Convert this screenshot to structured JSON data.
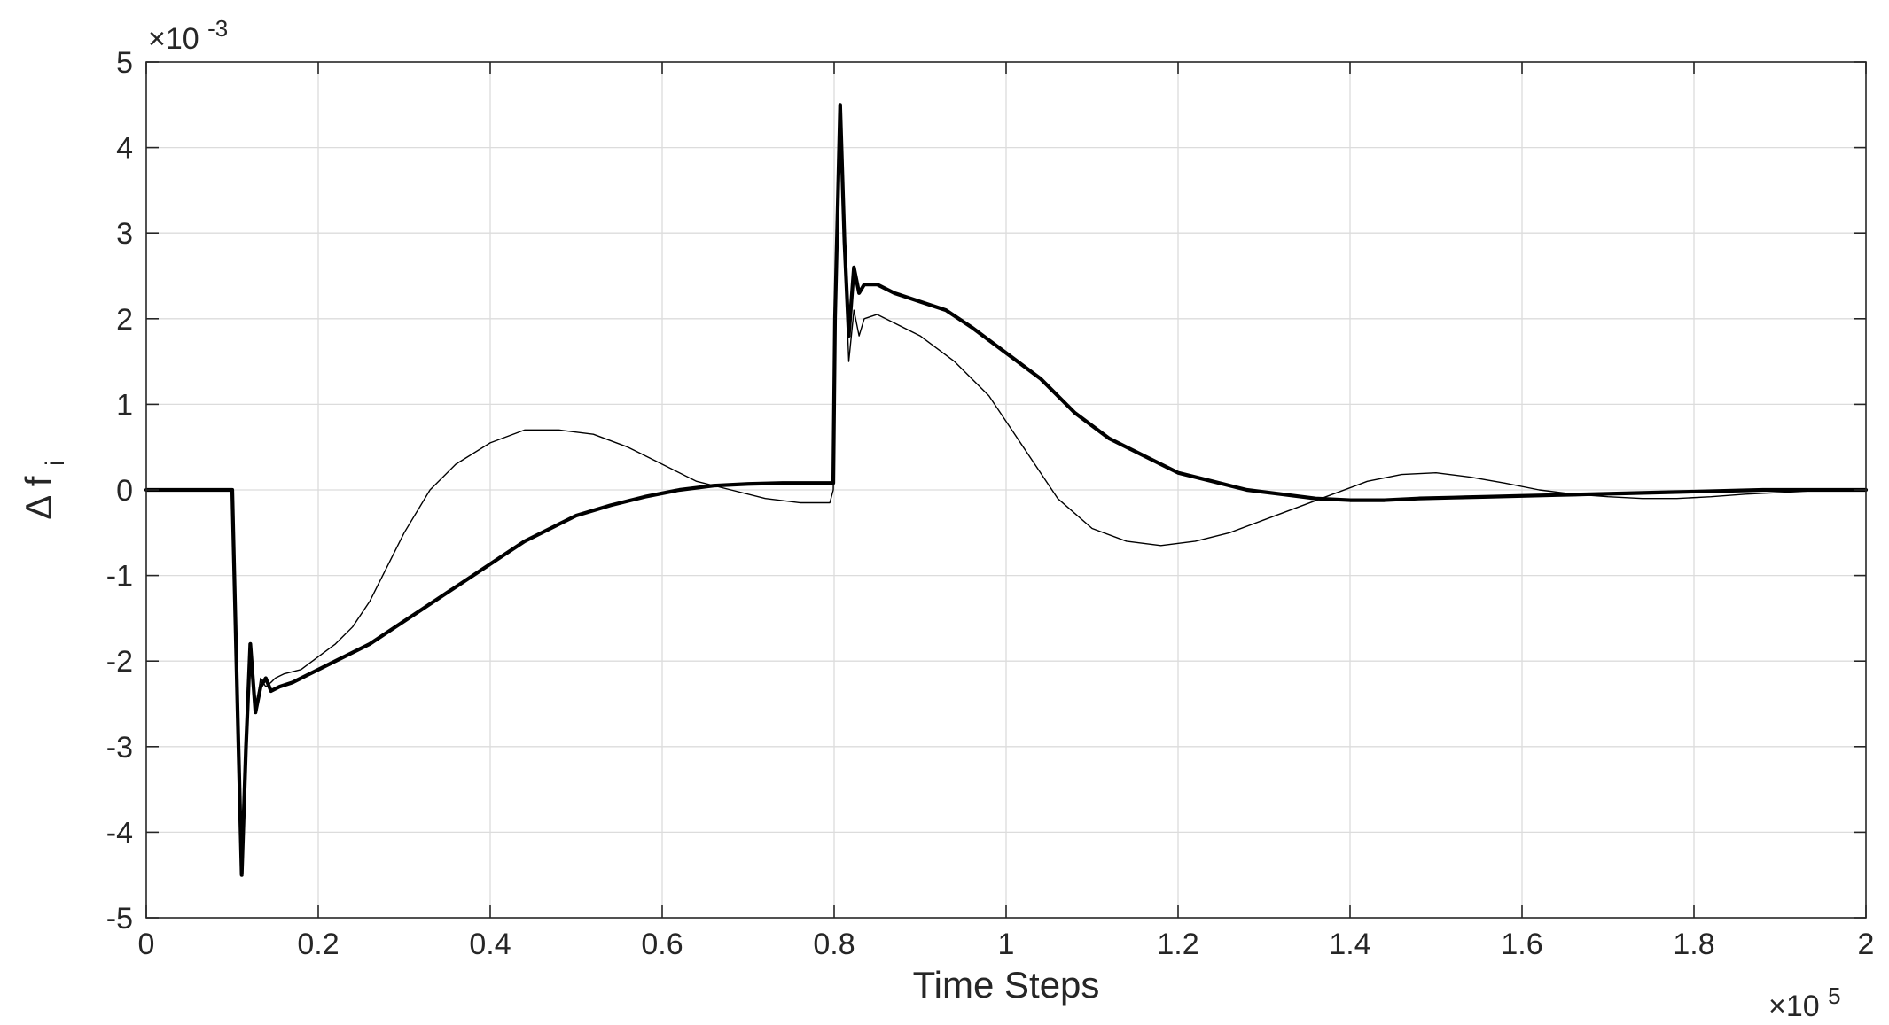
{
  "chart_data": {
    "type": "line",
    "xlabel": "Time Steps",
    "ylabel": "Δ f",
    "ylabel_subscript": "i",
    "x_exponent_label": "×10",
    "x_exponent_power": "5",
    "y_exponent_label": "×10",
    "y_exponent_power": "-3",
    "xlim": [
      0,
      200000
    ],
    "ylim": [
      -0.005,
      0.005
    ],
    "x_scale_factor": 100000,
    "y_scale_factor": 0.001,
    "x_ticks": [
      0,
      20000,
      40000,
      60000,
      80000,
      100000,
      120000,
      140000,
      160000,
      180000,
      200000
    ],
    "x_tick_labels": [
      "0",
      "0.2",
      "0.4",
      "0.6",
      "0.8",
      "1",
      "1.2",
      "1.4",
      "1.6",
      "1.8",
      "2"
    ],
    "y_ticks": [
      -0.005,
      -0.004,
      -0.003,
      -0.002,
      -0.001,
      0,
      0.001,
      0.002,
      0.003,
      0.004,
      0.005
    ],
    "y_tick_labels": [
      "-5",
      "-4",
      "-3",
      "-2",
      "-1",
      "0",
      "1",
      "2",
      "3",
      "4",
      "5"
    ],
    "grid": true,
    "series": [
      {
        "color": "#000000",
        "line_weight": "thin",
        "x": [
          0,
          9800,
          10000,
          10600,
          11100,
          11600,
          12100,
          12700,
          13300,
          13900,
          14500,
          15000,
          16000,
          18000,
          20000,
          22000,
          24000,
          26000,
          28000,
          30000,
          33000,
          36000,
          40000,
          44000,
          48000,
          52000,
          56000,
          60000,
          64000,
          68000,
          72000,
          76000,
          79500,
          79900,
          80100,
          80700,
          81200,
          81700,
          82300,
          82900,
          83500,
          85000,
          87000,
          90000,
          94000,
          98000,
          102000,
          106000,
          110000,
          114000,
          118000,
          122000,
          126000,
          130000,
          134000,
          138000,
          142000,
          146000,
          150000,
          154000,
          158000,
          162000,
          166000,
          170000,
          174000,
          178000,
          182000,
          186000,
          190000,
          194000,
          198000
        ],
        "y": [
          0,
          0,
          0,
          -0.0025,
          -0.0045,
          -0.003,
          -0.0019,
          -0.0026,
          -0.0022,
          -0.0023,
          -0.00225,
          -0.0022,
          -0.00215,
          -0.0021,
          -0.00195,
          -0.0018,
          -0.0016,
          -0.0013,
          -0.0009,
          -0.0005,
          0.0,
          0.0003,
          0.00055,
          0.0007,
          0.0007,
          0.00065,
          0.0005,
          0.0003,
          0.0001,
          0.0,
          -0.0001,
          -0.00015,
          -0.00015,
          0.0,
          0.002,
          0.0043,
          0.0028,
          0.0015,
          0.0021,
          0.0018,
          0.002,
          0.00205,
          0.00195,
          0.0018,
          0.0015,
          0.0011,
          0.0005,
          -0.0001,
          -0.00045,
          -0.0006,
          -0.00065,
          -0.0006,
          -0.0005,
          -0.00035,
          -0.0002,
          -5e-05,
          0.0001,
          0.00018,
          0.0002,
          0.00015,
          8e-05,
          0.0,
          -5e-05,
          -8e-05,
          -0.0001,
          -0.0001,
          -8e-05,
          -5e-05,
          -3e-05,
          -1e-05,
          0.0
        ]
      },
      {
        "color": "#000000",
        "line_weight": "thick",
        "x": [
          0,
          9800,
          10000,
          10600,
          11100,
          11600,
          12100,
          12700,
          13300,
          13900,
          14500,
          15500,
          17000,
          20000,
          23000,
          26000,
          29000,
          32000,
          35000,
          38000,
          41000,
          44000,
          47000,
          50000,
          54000,
          58000,
          62000,
          66000,
          70000,
          74000,
          78000,
          79900,
          80100,
          80700,
          81200,
          81700,
          82300,
          82900,
          83500,
          85000,
          87000,
          90000,
          93000,
          96000,
          100000,
          104000,
          108000,
          112000,
          116000,
          120000,
          124000,
          128000,
          132000,
          136000,
          140000,
          144000,
          148000,
          152000,
          156000,
          160000,
          164000,
          168000,
          172000,
          176000,
          180000,
          184000,
          188000,
          192000,
          196000,
          200000
        ],
        "y": [
          0,
          0,
          0,
          -0.0025,
          -0.0045,
          -0.003,
          -0.0018,
          -0.0026,
          -0.0023,
          -0.0022,
          -0.00235,
          -0.0023,
          -0.00225,
          -0.0021,
          -0.00195,
          -0.0018,
          -0.0016,
          -0.0014,
          -0.0012,
          -0.001,
          -0.0008,
          -0.0006,
          -0.00045,
          -0.0003,
          -0.00018,
          -8e-05,
          0.0,
          5e-05,
          7e-05,
          8e-05,
          8e-05,
          8e-05,
          0.002,
          0.0045,
          0.0029,
          0.0018,
          0.0026,
          0.0023,
          0.0024,
          0.0024,
          0.0023,
          0.0022,
          0.0021,
          0.0019,
          0.0016,
          0.0013,
          0.0009,
          0.0006,
          0.0004,
          0.0002,
          0.0001,
          0.0,
          -5e-05,
          -0.0001,
          -0.00012,
          -0.00012,
          -0.0001,
          -9e-05,
          -8e-05,
          -7e-05,
          -6e-05,
          -5e-05,
          -4e-05,
          -3e-05,
          -2e-05,
          -1e-05,
          0.0,
          0.0,
          0.0,
          0.0
        ]
      }
    ]
  }
}
